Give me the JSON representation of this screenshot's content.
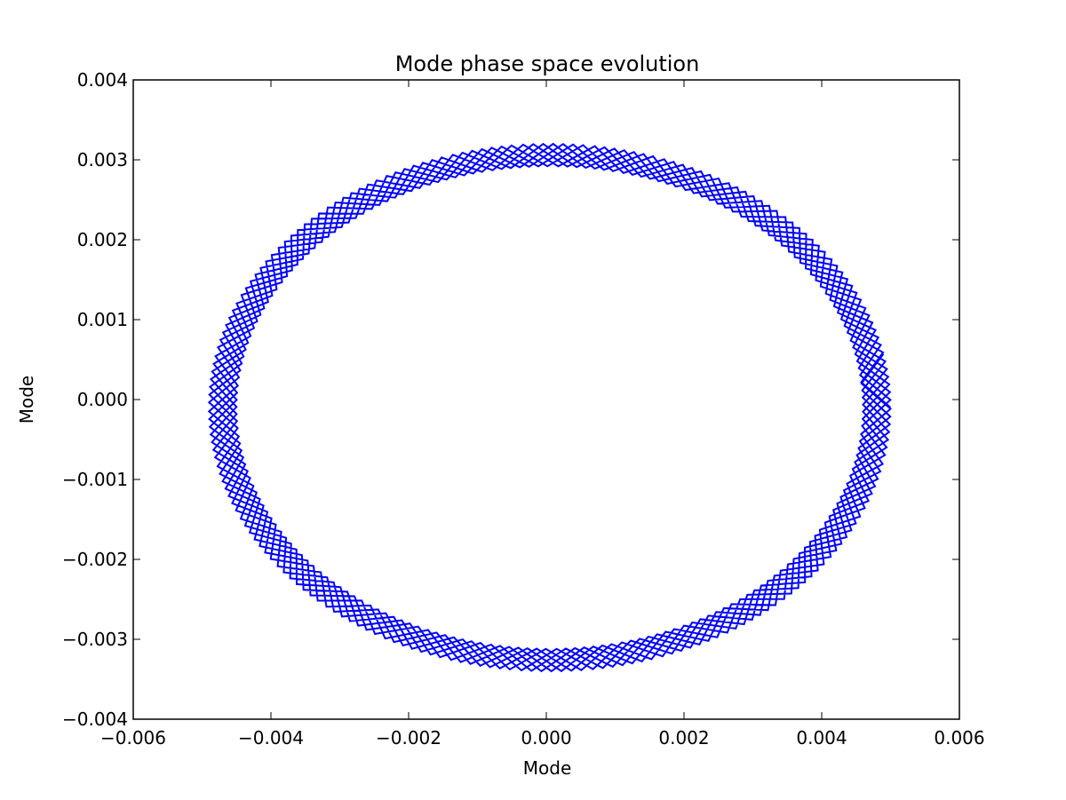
{
  "chart_data": {
    "type": "line",
    "title": "Mode phase space evolution",
    "xlabel": "Mode",
    "ylabel": "Mode",
    "xlim": [
      -0.006,
      0.006
    ],
    "ylim": [
      -0.004,
      0.004
    ],
    "xticks": [
      -0.006,
      -0.004,
      -0.002,
      0.0,
      0.002,
      0.004,
      0.006
    ],
    "yticks": [
      -0.004,
      -0.003,
      -0.002,
      -0.001,
      0.0,
      0.001,
      0.002,
      0.003,
      0.004
    ],
    "xtick_labels": [
      "−0.006",
      "−0.004",
      "−0.002",
      "0.000",
      "0.002",
      "0.004",
      "0.006"
    ],
    "ytick_labels": [
      "−0.004",
      "−0.003",
      "−0.002",
      "−0.001",
      "0.000",
      "0.001",
      "0.002",
      "0.003",
      "0.004"
    ],
    "grid": false,
    "series": [
      {
        "color": "#0000ff",
        "x_center": 5e-05,
        "y_center": -0.0001,
        "x_inner_radius": 0.00455,
        "y_inner_radius": 0.00302,
        "x_outer_radius": 0.00495,
        "y_outer_radius": 0.0033,
        "points_per_turn": 60,
        "turns": 7
      }
    ]
  }
}
